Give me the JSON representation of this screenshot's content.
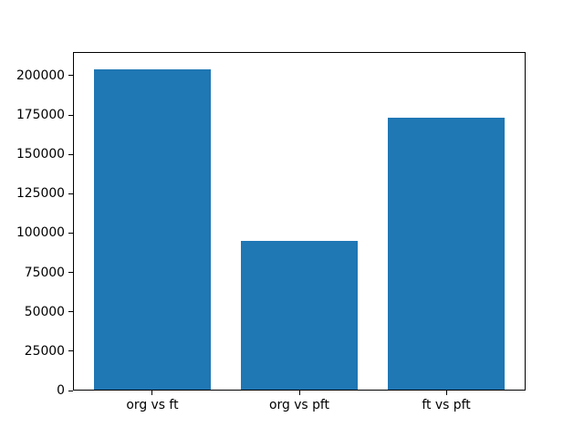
{
  "chart_data": {
    "type": "bar",
    "categories": [
      "org vs ft",
      "org vs pft",
      "ft vs pft"
    ],
    "values": [
      204000,
      95000,
      173000
    ],
    "title": "",
    "xlabel": "",
    "ylabel": "",
    "ylim": [
      0,
      215000
    ],
    "yticks": [
      0,
      25000,
      50000,
      75000,
      100000,
      125000,
      150000,
      175000,
      200000
    ],
    "bar_color": "#1f77b4",
    "bar_relative_width": 0.8,
    "grid": false,
    "legend": false,
    "background_color": "#ffffff",
    "axis_color": "#000000"
  }
}
